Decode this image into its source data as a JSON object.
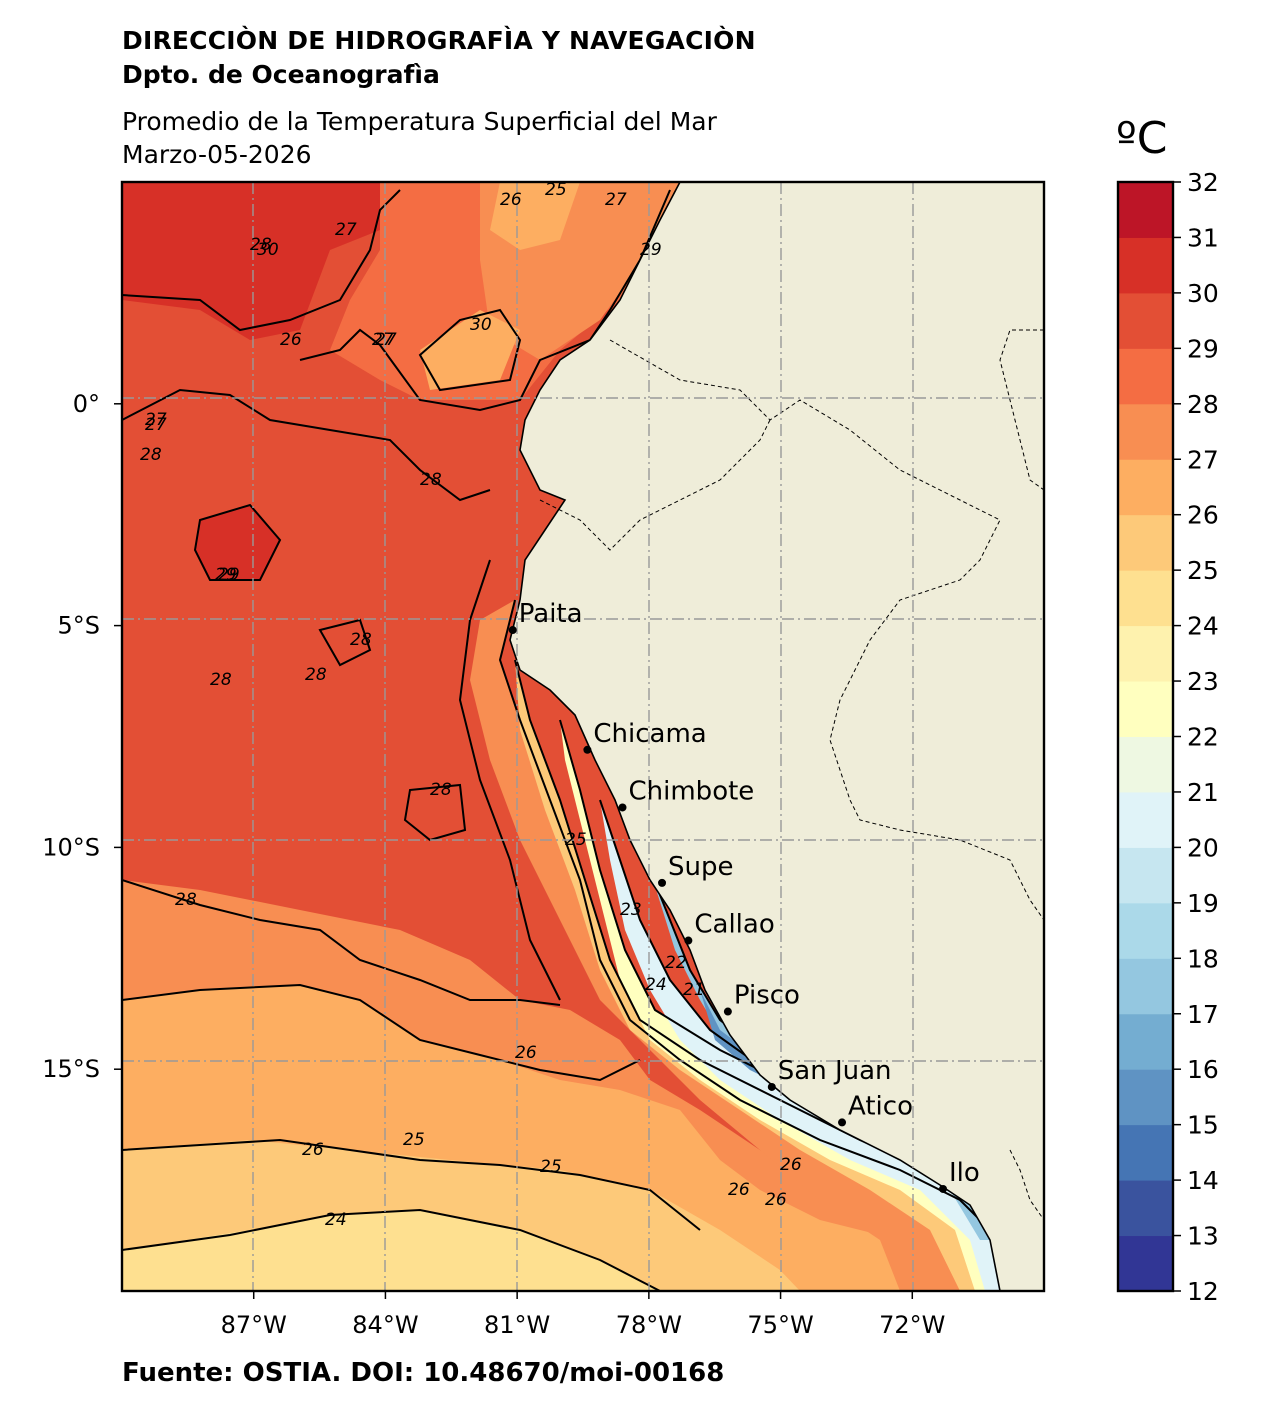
{
  "header": {
    "line1": "DIRECCIÒN DE HIDROGRAFÌA Y NAVEGACIÒN",
    "line2": "Dpto. de Oceanografìa",
    "title": "Promedio de la Temperatura Superficial del Mar",
    "date": "Marzo-05-2026"
  },
  "footer": {
    "source": "Fuente: OSTIA. DOI: 10.48670/moi-00168"
  },
  "map": {
    "lon_range": [
      -90,
      -69
    ],
    "lat_range": [
      -20,
      5
    ],
    "lon_ticks": [
      "87°W",
      "84°W",
      "81°W",
      "78°W",
      "75°W",
      "72°W"
    ],
    "lat_ticks": [
      "0°",
      "5°S",
      "10°S",
      "15°S"
    ],
    "land_color": "#efedd9",
    "grid": "dash-dot",
    "cities": [
      {
        "name": "Paita",
        "lon": -81.1,
        "lat": -5.1
      },
      {
        "name": "Chicama",
        "lon": -79.4,
        "lat": -7.8
      },
      {
        "name": "Chimbote",
        "lon": -78.6,
        "lat": -9.1
      },
      {
        "name": "Supe",
        "lon": -77.7,
        "lat": -10.8
      },
      {
        "name": "Callao",
        "lon": -77.1,
        "lat": -12.1
      },
      {
        "name": "Pisco",
        "lon": -76.2,
        "lat": -13.7
      },
      {
        "name": "San Juan",
        "lon": -75.2,
        "lat": -15.4
      },
      {
        "name": "Atico",
        "lon": -73.6,
        "lat": -16.2
      },
      {
        "name": "Ilo",
        "lon": -71.3,
        "lat": -17.7
      }
    ],
    "contour_labels": [
      "25",
      "26",
      "27",
      "28",
      "29",
      "30",
      "26",
      "28",
      "29",
      "27",
      "27",
      "28",
      "26",
      "26",
      "25",
      "24",
      "23",
      "22",
      "21",
      "25",
      "25",
      "26",
      "26",
      "26",
      "24",
      "28",
      "28",
      "28",
      "28",
      "27",
      "27",
      "29",
      "30",
      "28",
      "27"
    ]
  },
  "colorbar": {
    "unit": "ºC",
    "min": 12,
    "max": 32,
    "ticks": [
      "12",
      "13",
      "14",
      "15",
      "16",
      "17",
      "18",
      "19",
      "20",
      "21",
      "22",
      "23",
      "24",
      "25",
      "26",
      "27",
      "28",
      "29",
      "30",
      "31",
      "32"
    ],
    "colors": [
      "#313695",
      "#3a539e",
      "#4575b4",
      "#5f93c3",
      "#74add1",
      "#94c7e0",
      "#abd9e9",
      "#c6e6f0",
      "#e0f3f8",
      "#eef8e2",
      "#ffffbf",
      "#fef2ae",
      "#fee090",
      "#fdc979",
      "#fdae61",
      "#f88e52",
      "#f46d43",
      "#e34f35",
      "#d73027",
      "#bd1527",
      "#a50026"
    ]
  }
}
